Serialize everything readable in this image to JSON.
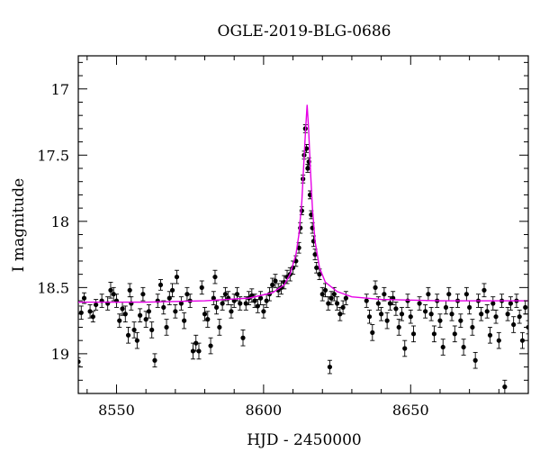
{
  "chart_data": {
    "type": "scatter",
    "title": "OGLE-2019-BLG-0686",
    "xlabel": "HJD - 2450000",
    "ylabel": "I magnitude",
    "xlim": [
      8537,
      8690
    ],
    "ylim": [
      16.75,
      19.3
    ],
    "y_inverted": true,
    "x_ticks": [
      8550,
      8600,
      8650
    ],
    "y_ticks": [
      17,
      17.5,
      18,
      18.5,
      19
    ],
    "colors": {
      "data": "#000000",
      "model": "#e600e6"
    },
    "model": {
      "baseline": 18.61,
      "peak_time": 8615.0,
      "peak_mag": 17.12,
      "points": [
        [
          8537,
          18.61
        ],
        [
          8560,
          18.61
        ],
        [
          8580,
          18.6
        ],
        [
          8595,
          18.58
        ],
        [
          8603,
          18.54
        ],
        [
          8607,
          18.48
        ],
        [
          8609,
          18.4
        ],
        [
          8611,
          18.25
        ],
        [
          8612,
          18.1
        ],
        [
          8613,
          17.85
        ],
        [
          8613.7,
          17.55
        ],
        [
          8614.3,
          17.3
        ],
        [
          8614.8,
          17.12
        ],
        [
          8615.3,
          17.3
        ],
        [
          8615.9,
          17.6
        ],
        [
          8616.6,
          17.9
        ],
        [
          8617.5,
          18.15
        ],
        [
          8619,
          18.35
        ],
        [
          8621,
          18.46
        ],
        [
          8625,
          18.53
        ],
        [
          8630,
          18.57
        ],
        [
          8640,
          18.59
        ],
        [
          8660,
          18.6
        ],
        [
          8690,
          18.6
        ]
      ]
    },
    "points": [
      [
        8537,
        19.06,
        0.03
      ],
      [
        8538,
        18.69,
        0.05
      ],
      [
        8539,
        18.58,
        0.04
      ],
      [
        8541,
        18.68,
        0.05
      ],
      [
        8542,
        18.72,
        0.04
      ],
      [
        8543,
        18.63,
        0.04
      ],
      [
        8545,
        18.6,
        0.05
      ],
      [
        8547,
        18.62,
        0.05
      ],
      [
        8548,
        18.52,
        0.06
      ],
      [
        8549,
        18.55,
        0.05
      ],
      [
        8550,
        18.6,
        0.05
      ],
      [
        8551,
        18.75,
        0.05
      ],
      [
        8552,
        18.66,
        0.05
      ],
      [
        8553,
        18.7,
        0.06
      ],
      [
        8554,
        18.86,
        0.06
      ],
      [
        8554.5,
        18.52,
        0.05
      ],
      [
        8555,
        18.62,
        0.05
      ],
      [
        8556,
        18.82,
        0.06
      ],
      [
        8557,
        18.9,
        0.06
      ],
      [
        8558,
        18.71,
        0.05
      ],
      [
        8559,
        18.55,
        0.05
      ],
      [
        8560,
        18.74,
        0.06
      ],
      [
        8561,
        18.68,
        0.05
      ],
      [
        8562,
        18.82,
        0.06
      ],
      [
        8563,
        19.05,
        0.05
      ],
      [
        8564,
        18.6,
        0.05
      ],
      [
        8565,
        18.48,
        0.04
      ],
      [
        8566,
        18.65,
        0.05
      ],
      [
        8567,
        18.8,
        0.06
      ],
      [
        8568,
        18.58,
        0.05
      ],
      [
        8569,
        18.52,
        0.05
      ],
      [
        8570,
        18.68,
        0.05
      ],
      [
        8570.5,
        18.42,
        0.05
      ],
      [
        8572,
        18.62,
        0.05
      ],
      [
        8573,
        18.75,
        0.06
      ],
      [
        8574,
        18.55,
        0.05
      ],
      [
        8575,
        18.6,
        0.05
      ],
      [
        8576,
        18.98,
        0.06
      ],
      [
        8577,
        18.92,
        0.06
      ],
      [
        8578,
        18.98,
        0.06
      ],
      [
        8579,
        18.5,
        0.05
      ],
      [
        8580,
        18.7,
        0.05
      ],
      [
        8581,
        18.74,
        0.06
      ],
      [
        8582,
        18.94,
        0.06
      ],
      [
        8583,
        18.58,
        0.05
      ],
      [
        8583.5,
        18.42,
        0.05
      ],
      [
        8584,
        18.65,
        0.05
      ],
      [
        8585,
        18.8,
        0.06
      ],
      [
        8586,
        18.62,
        0.05
      ],
      [
        8587,
        18.55,
        0.05
      ],
      [
        8588,
        18.58,
        0.05
      ],
      [
        8589,
        18.68,
        0.05
      ],
      [
        8590,
        18.6,
        0.05
      ],
      [
        8591,
        18.55,
        0.05
      ],
      [
        8592,
        18.62,
        0.05
      ],
      [
        8593,
        18.88,
        0.06
      ],
      [
        8594,
        18.62,
        0.05
      ],
      [
        8595,
        18.58,
        0.05
      ],
      [
        8596,
        18.56,
        0.05
      ],
      [
        8597,
        18.6,
        0.05
      ],
      [
        8598,
        18.64,
        0.05
      ],
      [
        8599,
        18.58,
        0.05
      ],
      [
        8600,
        18.68,
        0.05
      ],
      [
        8601,
        18.6,
        0.05
      ],
      [
        8602,
        18.55,
        0.05
      ],
      [
        8603,
        18.48,
        0.05
      ],
      [
        8604,
        18.45,
        0.05
      ],
      [
        8605,
        18.52,
        0.05
      ],
      [
        8606,
        18.5,
        0.05
      ],
      [
        8607,
        18.46,
        0.05
      ],
      [
        8608,
        18.42,
        0.05
      ],
      [
        8609,
        18.4,
        0.05
      ],
      [
        8610,
        18.35,
        0.05
      ],
      [
        8611,
        18.3,
        0.04
      ],
      [
        8612,
        18.2,
        0.04
      ],
      [
        8612.5,
        18.05,
        0.04
      ],
      [
        8613,
        17.92,
        0.03
      ],
      [
        8613.4,
        17.68,
        0.03
      ],
      [
        8613.8,
        17.5,
        0.03
      ],
      [
        8614.2,
        17.3,
        0.03
      ],
      [
        8614.6,
        17.45,
        0.03
      ],
      [
        8615.0,
        17.6,
        0.03
      ],
      [
        8615.4,
        17.55,
        0.03
      ],
      [
        8615.8,
        17.8,
        0.03
      ],
      [
        8616.2,
        17.95,
        0.03
      ],
      [
        8616.6,
        18.05,
        0.04
      ],
      [
        8617.0,
        18.15,
        0.04
      ],
      [
        8617.5,
        18.25,
        0.04
      ],
      [
        8618,
        18.35,
        0.04
      ],
      [
        8619,
        18.4,
        0.04
      ],
      [
        8620,
        18.55,
        0.05
      ],
      [
        8621,
        18.52,
        0.05
      ],
      [
        8622,
        18.62,
        0.05
      ],
      [
        8622.5,
        19.1,
        0.05
      ],
      [
        8623,
        18.58,
        0.05
      ],
      [
        8624,
        18.55,
        0.05
      ],
      [
        8625,
        18.62,
        0.05
      ],
      [
        8626,
        18.7,
        0.05
      ],
      [
        8627,
        18.65,
        0.05
      ],
      [
        8628,
        18.58,
        0.05
      ],
      [
        8635,
        18.6,
        0.05
      ],
      [
        8636,
        18.72,
        0.05
      ],
      [
        8637,
        18.84,
        0.06
      ],
      [
        8638,
        18.5,
        0.05
      ],
      [
        8639,
        18.62,
        0.05
      ],
      [
        8640,
        18.7,
        0.05
      ],
      [
        8641,
        18.55,
        0.05
      ],
      [
        8642,
        18.75,
        0.06
      ],
      [
        8643,
        18.62,
        0.05
      ],
      [
        8644,
        18.58,
        0.05
      ],
      [
        8645,
        18.66,
        0.05
      ],
      [
        8646,
        18.8,
        0.06
      ],
      [
        8647,
        18.7,
        0.05
      ],
      [
        8648,
        18.96,
        0.06
      ],
      [
        8649,
        18.6,
        0.05
      ],
      [
        8650,
        18.72,
        0.05
      ],
      [
        8651,
        18.85,
        0.06
      ],
      [
        8653,
        18.62,
        0.05
      ],
      [
        8655,
        18.68,
        0.05
      ],
      [
        8656,
        18.55,
        0.05
      ],
      [
        8657,
        18.7,
        0.05
      ],
      [
        8658,
        18.85,
        0.06
      ],
      [
        8659,
        18.6,
        0.05
      ],
      [
        8660,
        18.75,
        0.05
      ],
      [
        8661,
        18.95,
        0.06
      ],
      [
        8662,
        18.65,
        0.05
      ],
      [
        8663,
        18.55,
        0.05
      ],
      [
        8664,
        18.7,
        0.05
      ],
      [
        8665,
        18.85,
        0.06
      ],
      [
        8666,
        18.6,
        0.05
      ],
      [
        8667,
        18.75,
        0.05
      ],
      [
        8668,
        18.95,
        0.06
      ],
      [
        8669,
        18.55,
        0.05
      ],
      [
        8670,
        18.65,
        0.05
      ],
      [
        8671,
        18.8,
        0.06
      ],
      [
        8672,
        19.05,
        0.06
      ],
      [
        8673,
        18.6,
        0.05
      ],
      [
        8674,
        18.7,
        0.05
      ],
      [
        8675,
        18.52,
        0.05
      ],
      [
        8676,
        18.68,
        0.05
      ],
      [
        8677,
        18.86,
        0.06
      ],
      [
        8678,
        18.62,
        0.05
      ],
      [
        8679,
        18.72,
        0.05
      ],
      [
        8680,
        18.9,
        0.06
      ],
      [
        8681,
        18.6,
        0.05
      ],
      [
        8682,
        19.25,
        0.05
      ],
      [
        8683,
        18.7,
        0.05
      ],
      [
        8684,
        18.62,
        0.05
      ],
      [
        8685,
        18.78,
        0.06
      ],
      [
        8686,
        18.6,
        0.05
      ],
      [
        8687,
        18.72,
        0.05
      ],
      [
        8688,
        18.9,
        0.06
      ],
      [
        8689,
        18.65,
        0.05
      ],
      [
        8690,
        18.8,
        0.05
      ]
    ]
  }
}
